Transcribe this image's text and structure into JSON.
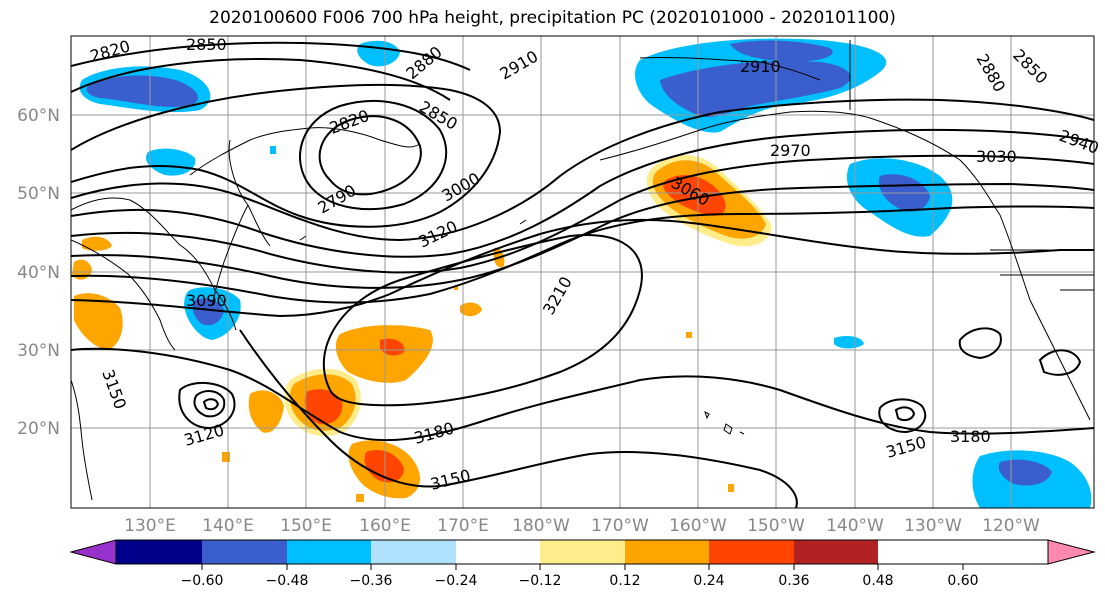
{
  "title": "2020100600 F006 700 hPa height, precipitation PC (2020101000 - 2020101100)",
  "lat_labels": [
    "60°N",
    "50°N",
    "40°N",
    "30°N",
    "20°N"
  ],
  "lon_labels": [
    "130°E",
    "140°E",
    "150°E",
    "160°E",
    "170°E",
    "180°W",
    "170°W",
    "160°W",
    "150°W",
    "140°W",
    "130°W",
    "120°W"
  ],
  "contour_labels": [
    "2820",
    "2850",
    "2880",
    "2910",
    "2820",
    "2850",
    "2790",
    "3000",
    "3120",
    "3090",
    "3150",
    "3120",
    "3210",
    "3180",
    "3150",
    "2910",
    "2880",
    "2850",
    "2940",
    "2970",
    "3030",
    "3060",
    "3150",
    "3180"
  ],
  "colorbar": {
    "ticks": [
      "−0.60",
      "−0.48",
      "−0.36",
      "−0.24",
      "−0.12",
      "0.12",
      "0.24",
      "0.36",
      "0.48",
      "0.60"
    ],
    "colors": [
      "#9932CC",
      "#00008B",
      "#3A5FCD",
      "#00BFFF",
      "#B0E2FF",
      "#FFFFFF",
      "#FFEC8B",
      "#FFA500",
      "#FF4500",
      "#B22222",
      "#FF88B0"
    ]
  }
}
